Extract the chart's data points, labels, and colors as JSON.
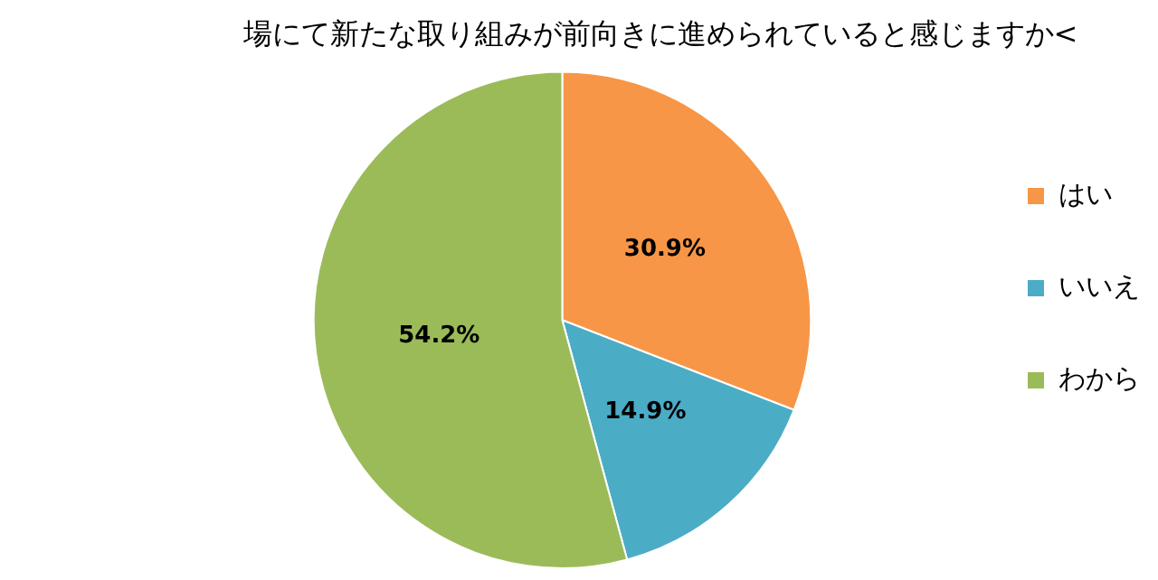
{
  "chart_data": {
    "type": "pie",
    "title": "場にて新たな取り組みが前向きに進められていると感じますか<",
    "categories": [
      "はい",
      "いいえ",
      "わから"
    ],
    "values": [
      30.9,
      14.9,
      54.2
    ],
    "colors": [
      "#f79646",
      "#4bacc6",
      "#9bbb59"
    ],
    "value_labels": [
      "30.9%",
      "14.9%",
      "54.2%"
    ],
    "legend": "right"
  }
}
